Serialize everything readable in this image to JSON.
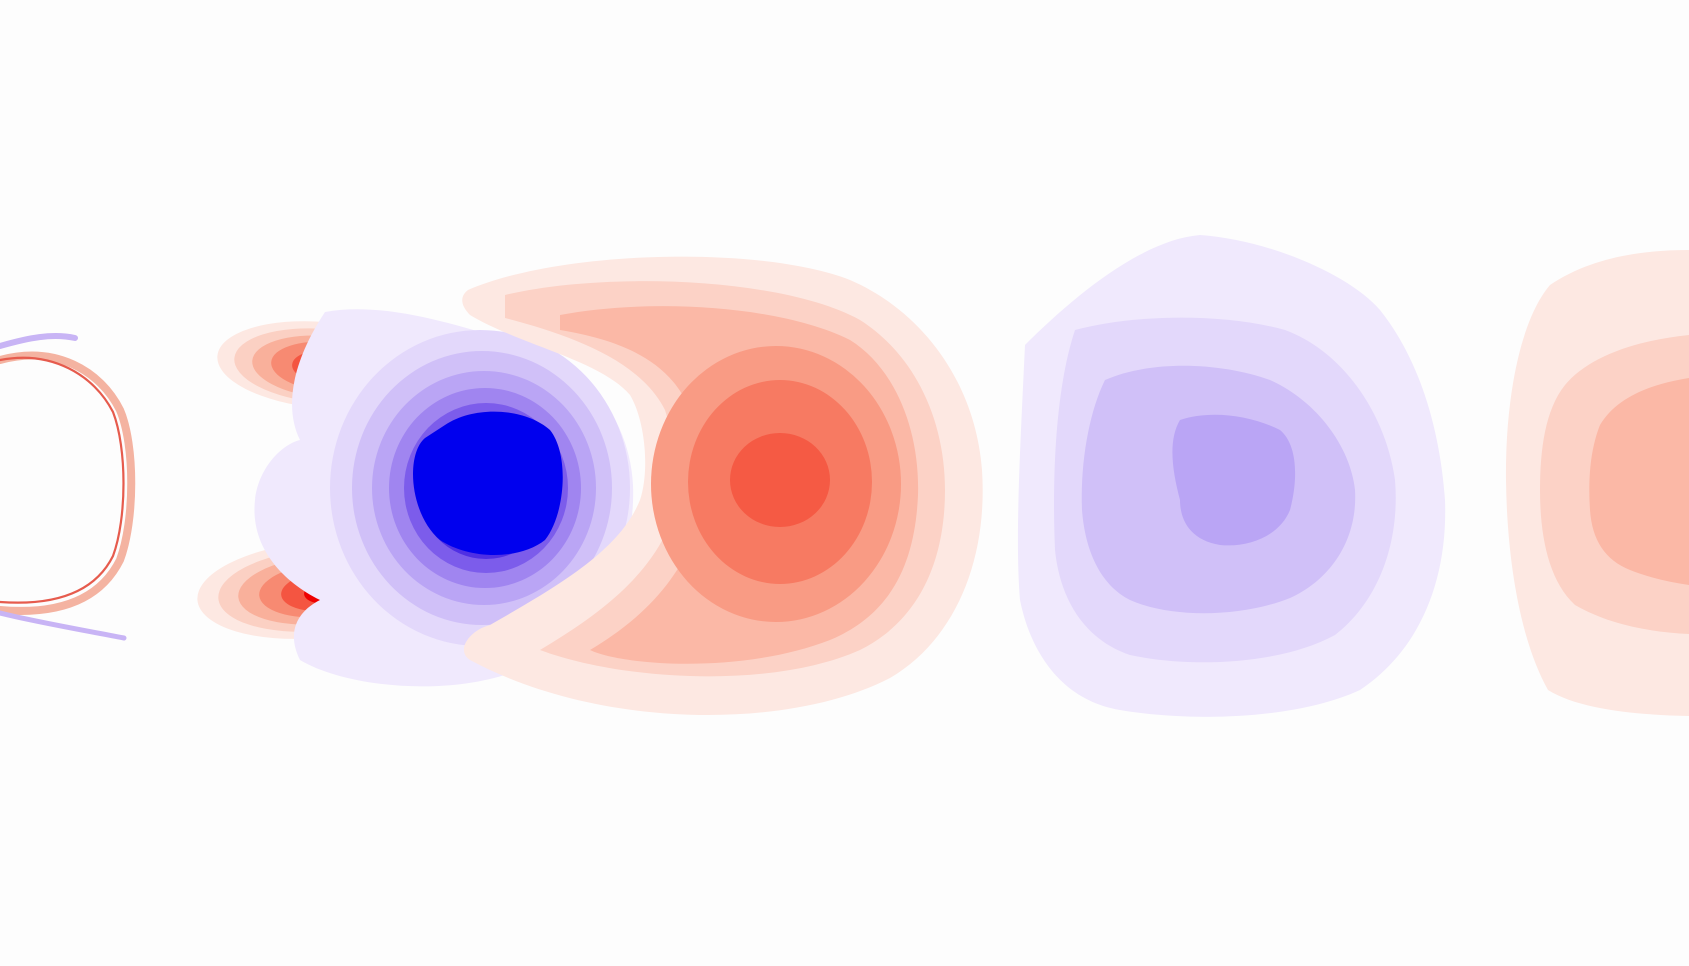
{
  "figure": {
    "kind": "vortex wake contour field",
    "colors": {
      "background": "#fdfdfd",
      "positive_scale": [
        "#fde8e2",
        "#fcd2c6",
        "#fbb8a6",
        "#f99b84",
        "#f77a62",
        "#f55a44",
        "#f2351f",
        "#ee0000"
      ],
      "negative_scale": [
        "#f0e9fd",
        "#e3d8fb",
        "#d0c0f8",
        "#baa5f5",
        "#a085f0",
        "#7c5ceb",
        "#4f2fe4",
        "#0000ee"
      ]
    }
  }
}
